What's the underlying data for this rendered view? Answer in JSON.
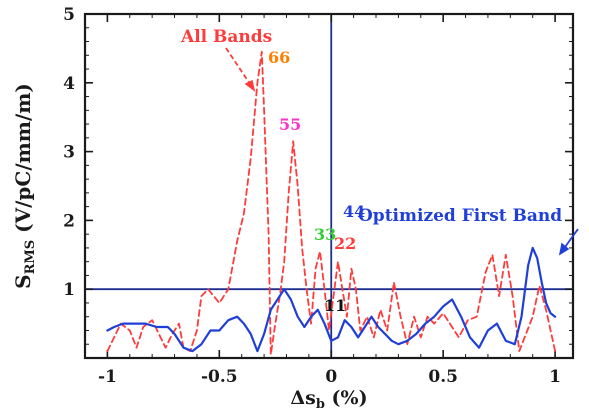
{
  "chart_data": {
    "type": "line",
    "title": "",
    "xlabel": "Δs_b (%)",
    "ylabel": "S_RMS (V/pC/mm/m)",
    "xlim": [
      -1.1,
      1.08
    ],
    "ylim": [
      0,
      5
    ],
    "x_ticks": [
      "-1",
      "-0.5",
      "0",
      "0.5",
      "1"
    ],
    "y_ticks": [
      "1",
      "2",
      "3",
      "4",
      "5"
    ],
    "reference_lines": {
      "x": 0,
      "y": 1,
      "color": "#1f2f8f"
    },
    "series": [
      {
        "name": "All Bands",
        "color": "#ff3b3b",
        "style": "dashed",
        "points": [
          [
            -1.0,
            0.1
          ],
          [
            -0.97,
            0.3
          ],
          [
            -0.94,
            0.5
          ],
          [
            -0.9,
            0.4
          ],
          [
            -0.87,
            0.15
          ],
          [
            -0.84,
            0.45
          ],
          [
            -0.8,
            0.55
          ],
          [
            -0.77,
            0.35
          ],
          [
            -0.74,
            0.15
          ],
          [
            -0.71,
            0.35
          ],
          [
            -0.68,
            0.5
          ],
          [
            -0.66,
            0.15
          ],
          [
            -0.63,
            0.1
          ],
          [
            -0.6,
            0.4
          ],
          [
            -0.58,
            0.9
          ],
          [
            -0.55,
            1.0
          ],
          [
            -0.5,
            0.8
          ],
          [
            -0.46,
            1.0
          ],
          [
            -0.42,
            1.7
          ],
          [
            -0.39,
            2.1
          ],
          [
            -0.36,
            2.9
          ],
          [
            -0.33,
            4.0
          ],
          [
            -0.31,
            4.45
          ],
          [
            -0.3,
            3.6
          ],
          [
            -0.28,
            1.8
          ],
          [
            -0.27,
            0.05
          ],
          [
            -0.25,
            0.5
          ],
          [
            -0.23,
            0.9
          ],
          [
            -0.21,
            1.4
          ],
          [
            -0.19,
            2.4
          ],
          [
            -0.17,
            3.15
          ],
          [
            -0.15,
            2.5
          ],
          [
            -0.13,
            1.6
          ],
          [
            -0.11,
            1.0
          ],
          [
            -0.09,
            0.5
          ],
          [
            -0.07,
            1.3
          ],
          [
            -0.05,
            1.55
          ],
          [
            -0.03,
            1.0
          ],
          [
            -0.01,
            0.4
          ],
          [
            0.01,
            0.9
          ],
          [
            0.03,
            1.4
          ],
          [
            0.05,
            1.0
          ],
          [
            0.07,
            0.6
          ],
          [
            0.09,
            1.3
          ],
          [
            0.11,
            1.0
          ],
          [
            0.13,
            0.4
          ],
          [
            0.16,
            0.6
          ],
          [
            0.19,
            0.3
          ],
          [
            0.22,
            0.7
          ],
          [
            0.25,
            0.4
          ],
          [
            0.28,
            1.1
          ],
          [
            0.31,
            0.6
          ],
          [
            0.34,
            0.2
          ],
          [
            0.37,
            0.6
          ],
          [
            0.4,
            0.3
          ],
          [
            0.43,
            0.6
          ],
          [
            0.46,
            0.5
          ],
          [
            0.5,
            0.65
          ],
          [
            0.53,
            0.5
          ],
          [
            0.57,
            0.3
          ],
          [
            0.61,
            0.55
          ],
          [
            0.65,
            0.6
          ],
          [
            0.69,
            1.25
          ],
          [
            0.72,
            1.5
          ],
          [
            0.75,
            0.9
          ],
          [
            0.78,
            1.5
          ],
          [
            0.81,
            0.9
          ],
          [
            0.84,
            0.1
          ],
          [
            0.87,
            0.35
          ],
          [
            0.9,
            0.6
          ],
          [
            0.93,
            1.05
          ],
          [
            0.96,
            0.7
          ],
          [
            0.98,
            0.4
          ],
          [
            1.0,
            0.1
          ]
        ]
      },
      {
        "name": "Optimized First Band",
        "color": "#1f3fd8",
        "style": "solid",
        "points": [
          [
            -1.0,
            0.4
          ],
          [
            -0.97,
            0.45
          ],
          [
            -0.93,
            0.5
          ],
          [
            -0.88,
            0.5
          ],
          [
            -0.83,
            0.5
          ],
          [
            -0.78,
            0.45
          ],
          [
            -0.73,
            0.45
          ],
          [
            -0.7,
            0.35
          ],
          [
            -0.66,
            0.15
          ],
          [
            -0.62,
            0.1
          ],
          [
            -0.58,
            0.2
          ],
          [
            -0.54,
            0.4
          ],
          [
            -0.5,
            0.4
          ],
          [
            -0.46,
            0.55
          ],
          [
            -0.42,
            0.6
          ],
          [
            -0.39,
            0.5
          ],
          [
            -0.36,
            0.35
          ],
          [
            -0.33,
            0.1
          ],
          [
            -0.3,
            0.35
          ],
          [
            -0.27,
            0.7
          ],
          [
            -0.24,
            0.85
          ],
          [
            -0.21,
            1.0
          ],
          [
            -0.18,
            0.85
          ],
          [
            -0.15,
            0.6
          ],
          [
            -0.12,
            0.45
          ],
          [
            -0.09,
            0.6
          ],
          [
            -0.06,
            0.7
          ],
          [
            -0.03,
            0.5
          ],
          [
            0.0,
            0.25
          ],
          [
            0.03,
            0.3
          ],
          [
            0.06,
            0.55
          ],
          [
            0.09,
            0.45
          ],
          [
            0.12,
            0.3
          ],
          [
            0.15,
            0.45
          ],
          [
            0.18,
            0.6
          ],
          [
            0.21,
            0.45
          ],
          [
            0.24,
            0.35
          ],
          [
            0.27,
            0.25
          ],
          [
            0.3,
            0.2
          ],
          [
            0.34,
            0.25
          ],
          [
            0.38,
            0.35
          ],
          [
            0.42,
            0.5
          ],
          [
            0.46,
            0.6
          ],
          [
            0.5,
            0.75
          ],
          [
            0.54,
            0.85
          ],
          [
            0.58,
            0.6
          ],
          [
            0.62,
            0.3
          ],
          [
            0.66,
            0.15
          ],
          [
            0.7,
            0.4
          ],
          [
            0.74,
            0.5
          ],
          [
            0.78,
            0.25
          ],
          [
            0.82,
            0.2
          ],
          [
            0.85,
            0.6
          ],
          [
            0.88,
            1.35
          ],
          [
            0.9,
            1.6
          ],
          [
            0.92,
            1.45
          ],
          [
            0.94,
            1.1
          ],
          [
            0.96,
            0.8
          ],
          [
            0.98,
            0.65
          ],
          [
            1.0,
            0.6
          ]
        ]
      }
    ],
    "annotations": [
      {
        "text": "All Bands",
        "color": "#ff3b3b"
      },
      {
        "text": "Optimized First Band",
        "color": "#1f3fd8"
      },
      {
        "text": "66",
        "color": "#ff7f00"
      },
      {
        "text": "55",
        "color": "#ff33cc"
      },
      {
        "text": "44",
        "color": "#1f3fd8"
      },
      {
        "text": "33",
        "color": "#33cc33"
      },
      {
        "text": "22",
        "color": "#ff3b3b"
      },
      {
        "text": "11",
        "color": "#111111"
      }
    ]
  }
}
